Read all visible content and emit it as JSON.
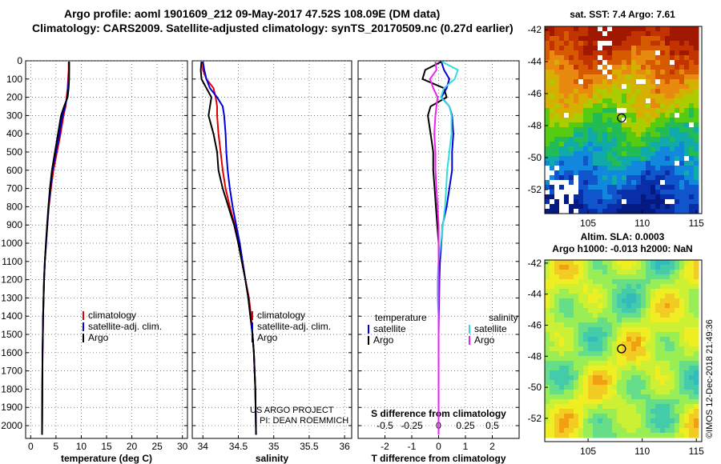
{
  "header": {
    "title": "Argo profile: aoml 1901609_212 09-May-2017 47.52S 108.09E (DM data)",
    "subtitle": "Climatology: CARS2009. Satellite-adjusted climatology: synTS_20170509.nc (0.27d earlier)"
  },
  "colors": {
    "climatology": "#e00000",
    "satellite_adj": "#0000dd",
    "argo": "#000000",
    "satellite_T": "#0000dd",
    "argo_T": "#000000",
    "satellite_S": "#33dddd",
    "argo_S": "#ee22ee"
  },
  "credits": {
    "project": "US ARGO PROJECT",
    "pi": "PI: DEAN ROEMMICH",
    "stamp": "©IMOS 12-Dec-2018 21:49:36"
  },
  "sst_map": {
    "title": "sat. SST: 7.4 Argo: 7.61",
    "xticks": [
      "105",
      "110",
      "115"
    ],
    "yticks": [
      "-42",
      "-44",
      "-46",
      "-48",
      "-50",
      "-52"
    ]
  },
  "sla_map": {
    "title1": "Altim. SLA: 0.0003",
    "title2": "Argo h1000: -0.013 h2000: NaN",
    "xticks": [
      "105",
      "110",
      "115"
    ],
    "yticks": [
      "-42",
      "-44",
      "-46",
      "-48",
      "-50",
      "-52"
    ]
  },
  "chart_data": [
    {
      "type": "line",
      "panel": "temperature",
      "xlabel": "temperature (deg C)",
      "ylabel": "",
      "xlim": [
        -1,
        31
      ],
      "ylim": [
        2070,
        0
      ],
      "y_inverted": true,
      "xticks": [
        0,
        5,
        10,
        15,
        20,
        25,
        30
      ],
      "yticks": [
        0,
        100,
        200,
        300,
        400,
        500,
        600,
        700,
        800,
        900,
        1000,
        1100,
        1200,
        1300,
        1400,
        1500,
        1600,
        1700,
        1800,
        1900,
        2000
      ],
      "grid": true,
      "legend": [
        "climatology",
        "satellite-adj. clim.",
        "Argo"
      ],
      "legend_position": "lower-right",
      "series": [
        {
          "name": "climatology",
          "x": [
            7.5,
            7.5,
            7.4,
            7.3,
            7.1,
            6.9,
            6.5,
            5.9,
            5.2,
            4.5,
            4.0,
            3.6,
            3.3,
            3.05,
            2.8,
            2.65,
            2.55,
            2.45,
            2.4,
            2.35,
            2.3,
            2.25
          ],
          "y": [
            5,
            50,
            100,
            150,
            200,
            250,
            300,
            400,
            500,
            600,
            700,
            800,
            900,
            1000,
            1100,
            1200,
            1300,
            1400,
            1500,
            1600,
            1800,
            2050
          ]
        },
        {
          "name": "satellite-adj. clim.",
          "x": [
            7.6,
            7.6,
            7.5,
            7.4,
            7.2,
            6.8,
            6.3,
            5.7,
            5.0,
            4.3,
            3.9,
            3.55,
            3.3,
            3.05,
            2.8,
            2.65,
            2.55,
            2.45,
            2.4,
            2.35,
            2.3,
            2.25
          ],
          "y": [
            5,
            50,
            100,
            150,
            200,
            250,
            300,
            400,
            500,
            600,
            700,
            800,
            900,
            1000,
            1100,
            1200,
            1300,
            1400,
            1500,
            1600,
            1800,
            2050
          ]
        },
        {
          "name": "Argo",
          "x": [
            7.6,
            7.6,
            7.6,
            7.5,
            7.3,
            6.6,
            6.0,
            5.4,
            4.8,
            4.2,
            3.8,
            3.5,
            3.25,
            3.0,
            2.8,
            2.65,
            2.55,
            2.45,
            2.4,
            2.35,
            2.3,
            2.25
          ],
          "y": [
            5,
            50,
            100,
            150,
            200,
            250,
            300,
            400,
            500,
            600,
            700,
            800,
            900,
            1000,
            1100,
            1200,
            1300,
            1400,
            1500,
            1600,
            1800,
            2050
          ]
        }
      ]
    },
    {
      "type": "line",
      "panel": "salinity",
      "xlabel": "salinity",
      "ylabel": "",
      "xlim": [
        33.85,
        36.1
      ],
      "ylim": [
        2070,
        0
      ],
      "y_inverted": true,
      "xticks": [
        34,
        34.5,
        35,
        35.5,
        36
      ],
      "xticklabels": [
        "34",
        "34.5",
        "35",
        "35.5",
        "36"
      ],
      "grid": true,
      "legend": [
        "climatology",
        "satellite-adj. clim.",
        "Argo"
      ],
      "legend_position": "lower-right",
      "series": [
        {
          "name": "climatology",
          "x": [
            34.0,
            34.0,
            34.05,
            34.15,
            34.18,
            34.2,
            34.2,
            34.22,
            34.25,
            34.28,
            34.32,
            34.38,
            34.45,
            34.5,
            34.55,
            34.6,
            34.65,
            34.68,
            34.7,
            34.72,
            34.74,
            34.75
          ],
          "y": [
            5,
            50,
            100,
            150,
            200,
            250,
            300,
            400,
            500,
            600,
            700,
            800,
            900,
            1000,
            1100,
            1200,
            1300,
            1400,
            1500,
            1600,
            1800,
            2050
          ]
        },
        {
          "name": "satellite-adj. clim.",
          "x": [
            34.0,
            34.02,
            34.05,
            34.1,
            34.2,
            34.28,
            34.3,
            34.32,
            34.33,
            34.35,
            34.38,
            34.42,
            34.47,
            34.52,
            34.56,
            34.6,
            34.64,
            34.67,
            34.7,
            34.72,
            34.74,
            34.75
          ],
          "y": [
            5,
            50,
            100,
            150,
            200,
            250,
            300,
            400,
            500,
            600,
            700,
            800,
            900,
            1000,
            1100,
            1200,
            1300,
            1400,
            1500,
            1600,
            1800,
            2050
          ]
        },
        {
          "name": "Argo",
          "x": [
            33.98,
            33.97,
            33.98,
            34.05,
            34.12,
            34.1,
            34.08,
            34.15,
            34.2,
            34.22,
            34.28,
            34.36,
            34.44,
            34.5,
            34.55,
            34.6,
            34.64,
            34.67,
            34.7,
            34.72,
            34.74,
            34.75
          ],
          "y": [
            5,
            50,
            100,
            150,
            200,
            250,
            300,
            400,
            500,
            600,
            700,
            800,
            900,
            1000,
            1100,
            1200,
            1300,
            1400,
            1500,
            1600,
            1800,
            2050
          ]
        }
      ]
    },
    {
      "type": "line",
      "panel": "difference",
      "xlabel": "T difference from climatology",
      "x2label": "S difference from climatology",
      "xlim": [
        -3,
        3
      ],
      "x2lim": [
        -0.75,
        0.75
      ],
      "ylim": [
        2070,
        0
      ],
      "y_inverted": true,
      "xticks": [
        -2,
        -1,
        0,
        1,
        2
      ],
      "x2ticks": [
        -0.5,
        -0.25,
        0,
        0.25,
        0.5
      ],
      "x2ticklabels": [
        "-0.5",
        "-0.25",
        "0",
        "0.25",
        "0.5"
      ],
      "grid": true,
      "legend_groups": [
        {
          "title": "temperature",
          "items": [
            "satellite",
            "Argo"
          ]
        },
        {
          "title": "salinity",
          "items": [
            "satellite",
            "Argo"
          ]
        }
      ],
      "series": [
        {
          "name": "satellite",
          "group": "temperature",
          "x": [
            0.1,
            0.2,
            0.4,
            0.3,
            0.1,
            0.4,
            0.5,
            0.55,
            0.5,
            0.5,
            0.4,
            0.3,
            0.15,
            0.1,
            0.05,
            0.03,
            0.02,
            0.01,
            0.0,
            0.0,
            0.0,
            0.0
          ],
          "y": [
            5,
            50,
            100,
            150,
            200,
            250,
            300,
            400,
            500,
            600,
            700,
            800,
            900,
            1000,
            1100,
            1200,
            1300,
            1400,
            1500,
            1600,
            1800,
            2050
          ]
        },
        {
          "name": "Argo",
          "group": "temperature",
          "x": [
            0.1,
            -0.5,
            -0.6,
            0.2,
            0.3,
            -0.3,
            -0.4,
            -0.3,
            -0.2,
            -0.2,
            -0.15,
            -0.1,
            -0.05,
            0.0,
            0.0,
            0.0,
            0.0,
            0.0,
            0.0,
            0.0,
            0.0,
            0.0
          ],
          "y": [
            5,
            50,
            100,
            150,
            200,
            250,
            300,
            400,
            500,
            600,
            700,
            800,
            900,
            1000,
            1100,
            1200,
            1300,
            1400,
            1500,
            1600,
            1800,
            2050
          ]
        },
        {
          "name": "satellite",
          "group": "salinity",
          "x": [
            0.03,
            0.18,
            0.15,
            0.05,
            0.02,
            0.1,
            0.12,
            0.12,
            0.1,
            0.08,
            0.07,
            0.06,
            0.04,
            0.02,
            0.0,
            -0.01,
            -0.01,
            0.0,
            0.0,
            0.0,
            0.0,
            0.0
          ],
          "y": [
            5,
            50,
            100,
            150,
            200,
            250,
            300,
            400,
            500,
            600,
            700,
            800,
            900,
            1000,
            1100,
            1200,
            1300,
            1400,
            1500,
            1600,
            1800,
            2050
          ]
        },
        {
          "name": "Argo",
          "group": "salinity",
          "x": [
            -0.03,
            -0.02,
            -0.08,
            -0.05,
            -0.01,
            -0.02,
            -0.03,
            -0.04,
            -0.03,
            -0.03,
            -0.02,
            -0.01,
            0.0,
            0.0,
            0.0,
            0.0,
            0.0,
            0.0,
            0.0,
            0.0,
            0.0,
            0.0
          ],
          "y": [
            5,
            50,
            100,
            150,
            200,
            250,
            300,
            400,
            500,
            600,
            700,
            800,
            900,
            1000,
            1100,
            1200,
            1300,
            1400,
            1500,
            1600,
            1800,
            2050
          ]
        }
      ]
    }
  ]
}
